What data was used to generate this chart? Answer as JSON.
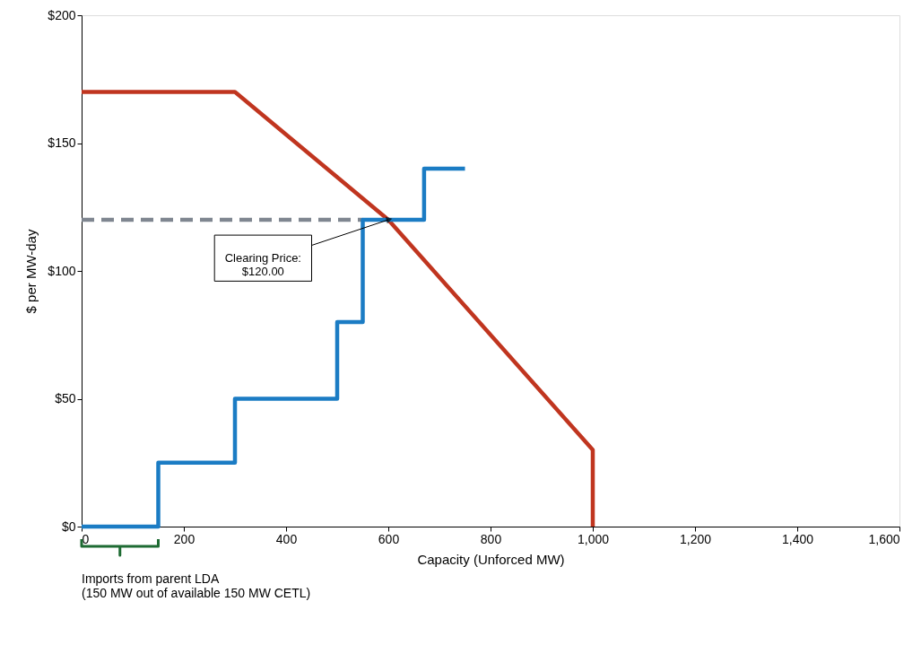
{
  "chart_data": {
    "type": "line",
    "xlabel": "Capacity (Unforced MW)",
    "ylabel": "$ per MW-day",
    "xlim": [
      0,
      1600
    ],
    "xticks": [
      0,
      200,
      400,
      600,
      800,
      {
        "value": 1000,
        "label": "1,000"
      },
      {
        "value": 1200,
        "label": "1,200"
      },
      {
        "value": 1400,
        "label": "1,400"
      },
      {
        "value": 1600,
        "label": "1,600"
      }
    ],
    "ylim": [
      0,
      200
    ],
    "yticks": [
      {
        "value": 0,
        "label": "$0"
      },
      {
        "value": 50,
        "label": "$50"
      },
      {
        "value": 100,
        "label": "$100"
      },
      {
        "value": 150,
        "label": "$150"
      },
      {
        "value": 200,
        "label": "$200"
      }
    ],
    "grid": false,
    "series": [
      {
        "color": "#7f8690",
        "line_style": "dashed",
        "x": [
          0,
          550
        ],
        "values": [
          120,
          120
        ]
      },
      {
        "color": "#c0351f",
        "x": [
          0,
          300,
          600,
          1000,
          1000
        ],
        "values": [
          170,
          170,
          120,
          30,
          0
        ]
      },
      {
        "type": "step",
        "color": "#1b7cc4",
        "x": [
          0,
          150,
          300,
          500,
          550,
          670,
          750
        ],
        "values": [
          0,
          25,
          50,
          80,
          120,
          140,
          140
        ]
      }
    ],
    "annotations": [
      {
        "text": "Clearing Price:\n$120.00",
        "x": 600,
        "y": 120
      },
      "Imports from parent LDA\n(150 MW out of available 150 MW CETL)"
    ]
  }
}
